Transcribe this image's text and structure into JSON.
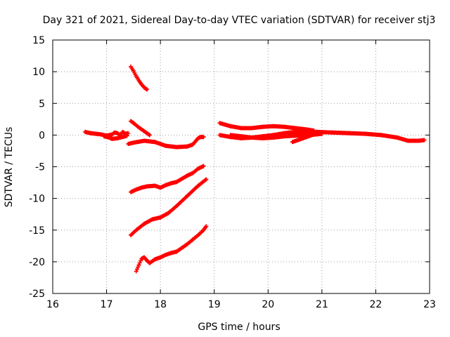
{
  "chart_data": {
    "type": "scatter",
    "title": "Day 321 of 2021, Sidereal Day-to-day VTEC variation (SDTVAR) for receiver stj3",
    "xlabel": "GPS time / hours",
    "ylabel": "SDTVAR / TECUs",
    "xlim": [
      16,
      23
    ],
    "ylim": [
      -25,
      15
    ],
    "xticks": [
      16,
      17,
      18,
      19,
      20,
      21,
      22,
      23
    ],
    "yticks": [
      -25,
      -20,
      -15,
      -10,
      -5,
      0,
      5,
      10,
      15
    ],
    "grid": true,
    "marker": "+",
    "series_color": "#ff0000",
    "series": [
      {
        "name": "s1",
        "x": [
          16.6,
          16.7,
          16.8,
          16.9,
          17.0,
          17.1,
          17.15,
          17.2,
          17.25,
          17.3,
          17.35,
          17.4
        ],
        "y": [
          0.5,
          0.3,
          0.2,
          0.1,
          -0.1,
          0.1,
          0.4,
          0.3,
          0.0,
          0.5,
          0.2,
          0.3
        ]
      },
      {
        "name": "s2",
        "x": [
          16.95,
          17.05,
          17.1,
          17.2,
          17.3,
          17.38
        ],
        "y": [
          -0.2,
          -0.4,
          -0.6,
          -0.5,
          -0.3,
          -0.1
        ]
      },
      {
        "name": "s3",
        "x": [
          17.4,
          17.5,
          17.7,
          17.9,
          18.1,
          18.3,
          18.5,
          18.6,
          18.7,
          18.75,
          18.8
        ],
        "y": [
          -1.4,
          -1.2,
          -0.9,
          -1.1,
          -1.7,
          -1.9,
          -1.8,
          -1.5,
          -0.5,
          -0.3,
          -0.3
        ]
      },
      {
        "name": "s4",
        "x": [
          17.45,
          17.5,
          17.55,
          17.6,
          17.65,
          17.7,
          17.75
        ],
        "y": [
          10.8,
          10.1,
          9.3,
          8.6,
          8.0,
          7.5,
          7.2
        ]
      },
      {
        "name": "s5",
        "x": [
          17.45,
          17.5,
          17.6,
          17.7,
          17.8
        ],
        "y": [
          2.2,
          1.9,
          1.2,
          0.6,
          0.0
        ]
      },
      {
        "name": "s6",
        "x": [
          17.45,
          17.55,
          17.65,
          17.75,
          17.9,
          18.0,
          18.1,
          18.2,
          18.3,
          18.5,
          18.6,
          18.7,
          18.8
        ],
        "y": [
          -9.0,
          -8.6,
          -8.3,
          -8.1,
          -8.0,
          -8.3,
          -7.9,
          -7.6,
          -7.4,
          -6.4,
          -6.0,
          -5.3,
          -4.9
        ]
      },
      {
        "name": "s7",
        "x": [
          17.45,
          17.55,
          17.7,
          17.85,
          18.0,
          18.15,
          18.3,
          18.5,
          18.7,
          18.85
        ],
        "y": [
          -15.8,
          -15.0,
          -14.0,
          -13.3,
          -13.0,
          -12.3,
          -11.2,
          -9.6,
          -8.0,
          -7.0
        ]
      },
      {
        "name": "s8",
        "x": [
          17.55,
          17.6,
          17.65,
          17.7,
          17.75,
          17.8,
          17.9,
          18.0,
          18.1,
          18.2,
          18.3,
          18.4,
          18.5,
          18.6,
          18.7,
          18.8,
          18.85
        ],
        "y": [
          -21.5,
          -20.5,
          -19.5,
          -19.3,
          -19.8,
          -20.2,
          -19.6,
          -19.3,
          -18.9,
          -18.6,
          -18.4,
          -17.8,
          -17.2,
          -16.5,
          -15.8,
          -15.0,
          -14.4
        ]
      },
      {
        "name": "s9",
        "x": [
          19.1,
          19.3,
          19.5,
          19.7,
          19.9,
          20.1,
          20.3,
          20.5,
          20.7,
          20.85
        ],
        "y": [
          1.9,
          1.4,
          1.1,
          1.1,
          1.3,
          1.4,
          1.3,
          1.1,
          0.9,
          0.7
        ]
      },
      {
        "name": "s10",
        "x": [
          19.1,
          19.3,
          19.5,
          19.7,
          19.9,
          20.1,
          20.3,
          20.5,
          20.7,
          20.9,
          21.2,
          21.5,
          21.8,
          22.1,
          22.4,
          22.6,
          22.8,
          22.9
        ],
        "y": [
          0.0,
          -0.3,
          -0.5,
          -0.4,
          -0.2,
          0.0,
          0.3,
          0.5,
          0.6,
          0.5,
          0.4,
          0.3,
          0.2,
          0.0,
          -0.4,
          -0.9,
          -0.9,
          -0.8
        ]
      },
      {
        "name": "s11",
        "x": [
          19.3,
          19.5,
          19.7,
          19.9,
          20.1,
          20.3,
          20.5,
          20.7,
          20.9,
          21.0
        ],
        "y": [
          0.0,
          -0.2,
          -0.4,
          -0.5,
          -0.4,
          -0.2,
          -0.1,
          0.0,
          0.1,
          0.2
        ]
      },
      {
        "name": "s12",
        "x": [
          20.45,
          20.55,
          20.65,
          20.75,
          20.85
        ],
        "y": [
          -1.1,
          -0.8,
          -0.5,
          -0.2,
          0.1
        ]
      }
    ]
  }
}
